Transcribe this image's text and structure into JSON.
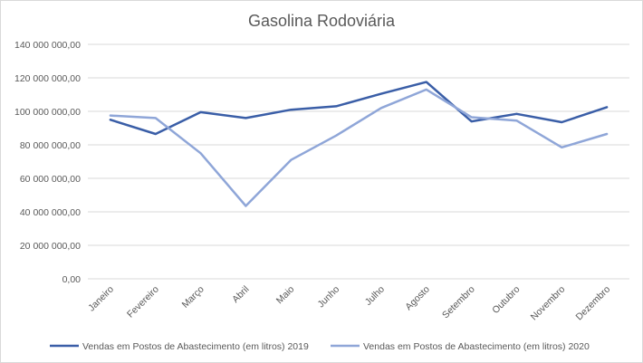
{
  "chart_data": {
    "type": "line",
    "title": "Gasolina Rodoviária",
    "xlabel": "",
    "ylabel": "",
    "categories": [
      "Janeiro",
      "Fevereiro",
      "Março",
      "Abril",
      "Maio",
      "Junho",
      "Julho",
      "Agosto",
      "Setembro",
      "Outubro",
      "Novembro",
      "Dezembro"
    ],
    "ylim": [
      0,
      140000000
    ],
    "yticks": [
      0,
      20000000,
      40000000,
      60000000,
      80000000,
      100000000,
      120000000,
      140000000
    ],
    "ytick_labels": [
      "0,00",
      "20 000 000,00",
      "40 000 000,00",
      "60 000 000,00",
      "80 000 000,00",
      "100 000 000,00",
      "120 000 000,00",
      "140 000 000,00"
    ],
    "grid": "horizontal",
    "legend_position": "bottom",
    "series": [
      {
        "name": "Vendas em Postos de Abastecimento  (em litros) 2019",
        "color": "#3a5ea7",
        "values": [
          95000000,
          86500000,
          99500000,
          96000000,
          101000000,
          103000000,
          110500000,
          117500000,
          94000000,
          98500000,
          93500000,
          102500000
        ]
      },
      {
        "name": "Vendas em Postos de Abastecimento  (em litros) 2020",
        "color": "#8fa6d8",
        "values": [
          97500000,
          96000000,
          75000000,
          43500000,
          71000000,
          85500000,
          102000000,
          113000000,
          96500000,
          94500000,
          78500000,
          86500000
        ]
      }
    ]
  }
}
